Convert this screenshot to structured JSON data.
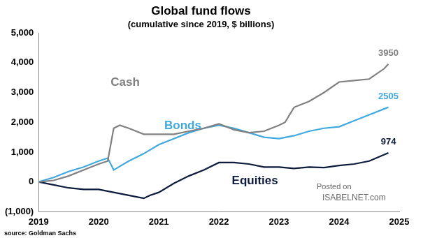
{
  "chart_data": {
    "type": "line",
    "title": "Global fund flows",
    "subtitle": "(cumulative since 2019, $ billions)",
    "source": "source: Goldman Sachs",
    "watermark": [
      "Posted on",
      "ISABELNET.com"
    ],
    "marker": "none",
    "line_style": "solid",
    "grid": false,
    "xlim": [
      2019,
      2025
    ],
    "xticks": [
      2019,
      2020,
      2021,
      2022,
      2023,
      2024,
      2025
    ],
    "ylim": [
      -1000,
      5000
    ],
    "yticks": [
      {
        "value": -1000,
        "label": "(1,000)"
      },
      0,
      {
        "value": 1000,
        "label": "1,000"
      },
      {
        "value": 2000,
        "label": "2,000"
      },
      {
        "value": 3000,
        "label": "3,000"
      },
      {
        "value": 4000,
        "label": "4,000"
      },
      {
        "value": 5000,
        "label": "5,000"
      }
    ],
    "series": [
      {
        "name": "Cash",
        "color": "#808080",
        "x": [
          2019.0,
          2019.25,
          2019.5,
          2019.75,
          2020.0,
          2020.15,
          2020.25,
          2020.35,
          2020.5,
          2020.75,
          2021.0,
          2021.25,
          2021.5,
          2021.75,
          2022.0,
          2022.25,
          2022.5,
          2022.75,
          2023.0,
          2023.1,
          2023.25,
          2023.5,
          2023.75,
          2024.0,
          2024.25,
          2024.5,
          2024.75,
          2024.82
        ],
        "values": [
          0,
          50,
          200,
          400,
          600,
          700,
          1800,
          1900,
          1800,
          1600,
          1600,
          1600,
          1700,
          1800,
          1950,
          1750,
          1650,
          1700,
          1900,
          2000,
          2500,
          2700,
          3000,
          3350,
          3400,
          3450,
          3800,
          3950
        ]
      },
      {
        "name": "Bonds",
        "color": "#3fa9e0",
        "x": [
          2019.0,
          2019.25,
          2019.5,
          2019.75,
          2020.0,
          2020.15,
          2020.25,
          2020.5,
          2020.75,
          2021.0,
          2021.25,
          2021.5,
          2021.75,
          2022.0,
          2022.25,
          2022.5,
          2022.75,
          2023.0,
          2023.25,
          2023.5,
          2023.75,
          2024.0,
          2024.25,
          2024.5,
          2024.82
        ],
        "values": [
          0,
          150,
          350,
          500,
          700,
          800,
          400,
          700,
          950,
          1250,
          1450,
          1650,
          1800,
          1900,
          1800,
          1650,
          1500,
          1450,
          1550,
          1700,
          1800,
          1850,
          2050,
          2250,
          2505
        ]
      },
      {
        "name": "Equities",
        "color": "#0d1b3e",
        "x": [
          2019.0,
          2019.25,
          2019.5,
          2019.75,
          2020.0,
          2020.25,
          2020.5,
          2020.75,
          2020.85,
          2021.0,
          2021.25,
          2021.5,
          2021.75,
          2022.0,
          2022.25,
          2022.5,
          2022.75,
          2023.0,
          2023.25,
          2023.5,
          2023.75,
          2024.0,
          2024.25,
          2024.5,
          2024.82
        ],
        "values": [
          0,
          -100,
          -200,
          -250,
          -250,
          -350,
          -450,
          -550,
          -450,
          -350,
          -50,
          200,
          400,
          650,
          650,
          600,
          500,
          500,
          450,
          500,
          480,
          550,
          600,
          700,
          974
        ]
      }
    ],
    "annotations": [
      {
        "text": "3950",
        "series": "Cash"
      },
      {
        "text": "2505",
        "series": "Bonds"
      },
      {
        "text": "974",
        "series": "Equities"
      }
    ]
  }
}
